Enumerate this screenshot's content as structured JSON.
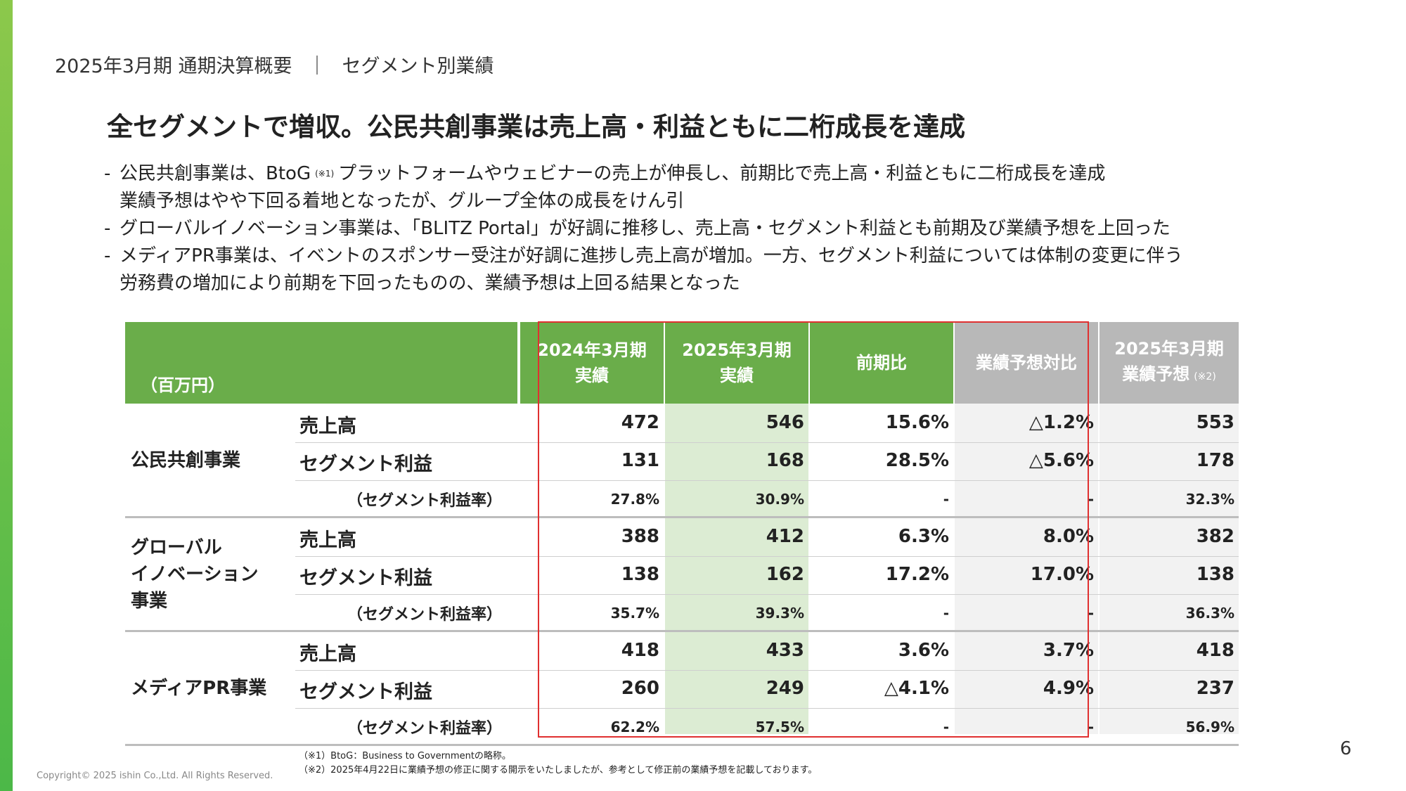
{
  "header": {
    "left": "2025年3月期 通期決算概要",
    "separator": "｜",
    "right": "セグメント別業績"
  },
  "title": "全セグメントで増収。公民共創事業は売上高・利益ともに二桁成長を達成",
  "bullets": [
    {
      "dash": "-",
      "pre": "公民共創事業は、BtoG",
      "note": "(※1)",
      "post": "プラットフォームやウェビナーの売上が伸長し、前期比で売上高・利益ともに二桁成長を達成",
      "line2": "業績予想はやや下回る着地となったが、グループ全体の成長をけん引"
    },
    {
      "dash": "-",
      "text": "グローバルイノベーション事業は、「BLITZ Portal」が好調に推移し、売上高・セグメント利益とも前期及び業績予想を上回った"
    },
    {
      "dash": "-",
      "text": "メディアPR事業は、イベントのスポンサー受注が好調に進捗し売上高が増加。一方、セグメント利益については体制の変更に伴う",
      "line2": "労務費の増加により前期を下回ったものの、業績予想は上回る結果となった"
    }
  ],
  "table": {
    "unit": "（百万円）",
    "headers": {
      "prev_l1": "2024年3月期",
      "prev_l2": "実績",
      "curr_l1": "2025年3月期",
      "curr_l2": "実績",
      "yoy": "前期比",
      "vs_fc": "業績予想対比",
      "fc_l1": "2025年3月期",
      "fc_l2": "業績予想",
      "fc_note": "(※2)"
    },
    "row_labels": {
      "sales": "売上高",
      "profit": "セグメント利益",
      "rate": "（セグメント利益率）"
    },
    "segments": [
      {
        "name_lines": [
          "公民共創事業"
        ],
        "rows": [
          {
            "prev": "472",
            "curr": "546",
            "yoy": "15.6%",
            "vs_fc": "△1.2%",
            "fc": "553"
          },
          {
            "prev": "131",
            "curr": "168",
            "yoy": "28.5%",
            "vs_fc": "△5.6%",
            "fc": "178"
          },
          {
            "prev": "27.8%",
            "curr": "30.9%",
            "yoy": "-",
            "vs_fc": "-",
            "fc": "32.3%"
          }
        ]
      },
      {
        "name_lines": [
          "グローバル",
          "イノベーション",
          "事業"
        ],
        "rows": [
          {
            "prev": "388",
            "curr": "412",
            "yoy": "6.3%",
            "vs_fc": "8.0%",
            "fc": "382"
          },
          {
            "prev": "138",
            "curr": "162",
            "yoy": "17.2%",
            "vs_fc": "17.0%",
            "fc": "138"
          },
          {
            "prev": "35.7%",
            "curr": "39.3%",
            "yoy": "-",
            "vs_fc": "-",
            "fc": "36.3%"
          }
        ]
      },
      {
        "name_lines": [
          "メディアPR事業"
        ],
        "rows": [
          {
            "prev": "418",
            "curr": "433",
            "yoy": "3.6%",
            "vs_fc": "3.7%",
            "fc": "418"
          },
          {
            "prev": "260",
            "curr": "249",
            "yoy": "△4.1%",
            "vs_fc": "4.9%",
            "fc": "237"
          },
          {
            "prev": "62.2%",
            "curr": "57.5%",
            "yoy": "-",
            "vs_fc": "-",
            "fc": "56.9%"
          }
        ]
      }
    ]
  },
  "footnotes": [
    "（※1）BtoG：Business to Governmentの略称。",
    "（※2）2025年4月22日に業績予想の修正に関する開示をいたしましたが、参考として修正前の業績予想を記載しております。"
  ],
  "copyright": "Copyright©  2025 ishin Co.,Ltd. All Rights Reserved.",
  "page_number": "6",
  "colors": {
    "header_green": "#6aad4a",
    "header_gray": "#b8b8b8",
    "current_col_bg": "#dcecd3",
    "vs_fc_col_bg": "#f2f2f2",
    "fc_col_bg": "#f2f2f2",
    "highlight_border": "#e03030",
    "accent_bar": "#6cc04a"
  }
}
